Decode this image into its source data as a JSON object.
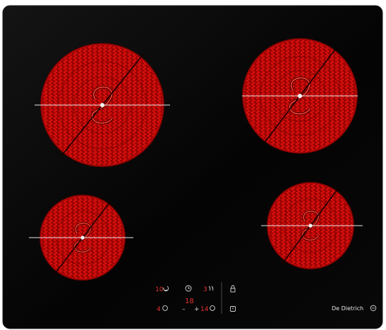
{
  "brand": {
    "name": "De Dietrich",
    "logo_icon": "dedietrich-logo-icon"
  },
  "colors": {
    "glass": "#040404",
    "coil_red": "#e80a0a",
    "display_red": "#e8322e",
    "icon_grey": "#d9d9d9"
  },
  "controls": {
    "top_left_display": "10",
    "top_left_icon": "left-arrow-icon",
    "timer_icon": "clock-icon",
    "top_right_display": "3",
    "top_right_icon": "heat-icon",
    "center_display": "18",
    "bottom_left_display": "4",
    "bottom_left_icon": "round-zone-icon",
    "minus_label": "–",
    "plus_label": "+",
    "bottom_right_display": "14",
    "bottom_right_icon": "round-zone-icon",
    "lock_icon": "lock-icon",
    "power_icon": "power-icon"
  }
}
